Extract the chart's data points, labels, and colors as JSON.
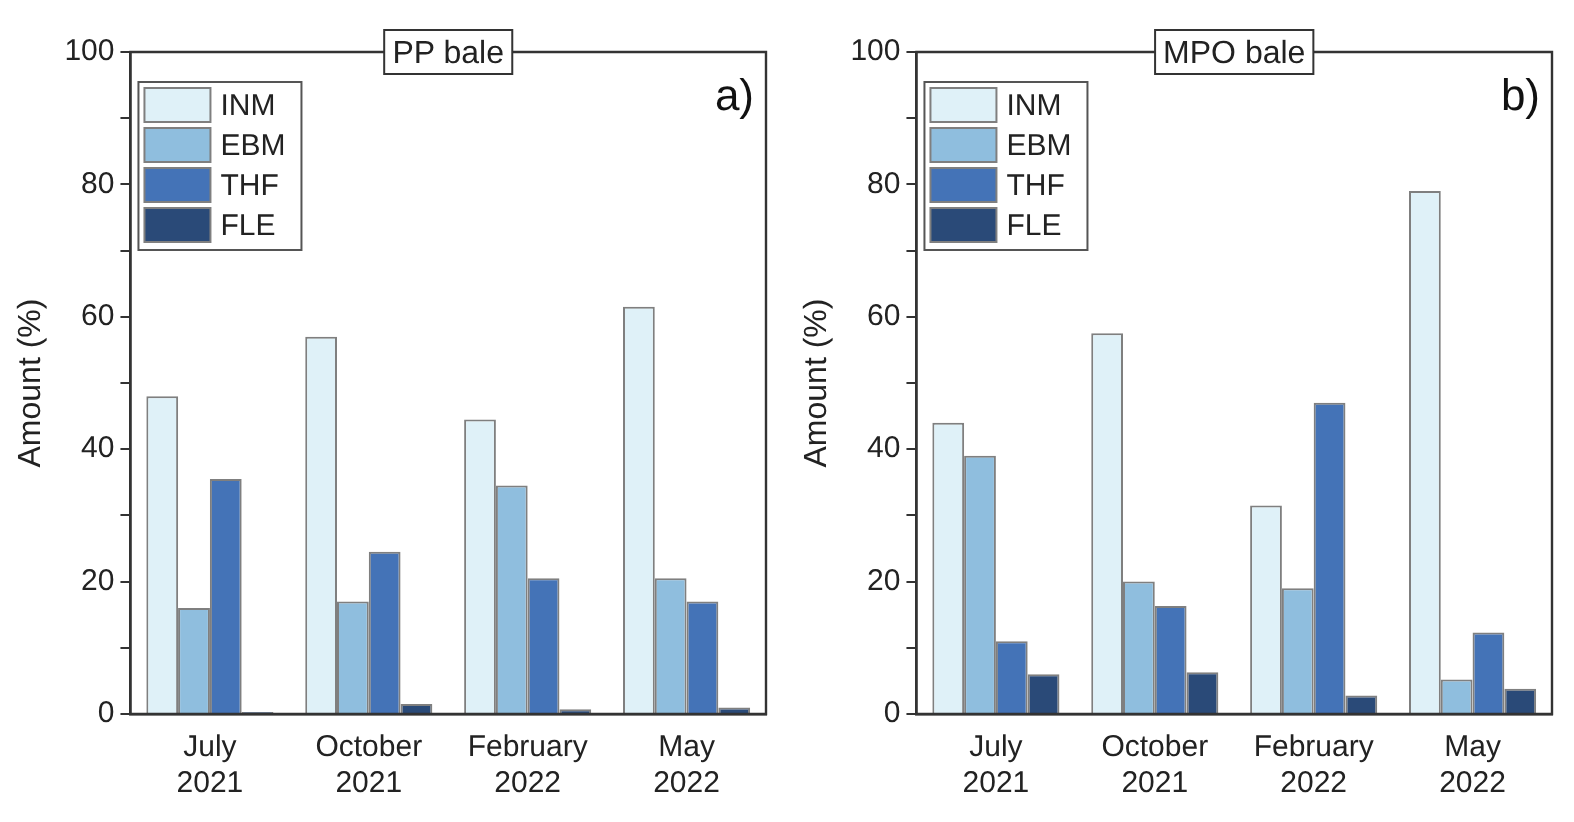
{
  "chart_data": [
    {
      "type": "bar",
      "title": "PP bale",
      "ylabel": "Amount (%)",
      "annotations": [
        "a)"
      ],
      "categories": [
        "July 2021",
        "October 2021",
        "February 2022",
        "May 2022"
      ],
      "series": [
        {
          "name": "INM",
          "color": "#dff1f8",
          "values": [
            48,
            57,
            44.5,
            61.5
          ]
        },
        {
          "name": "EBM",
          "color": "#8fbede",
          "values": [
            16,
            17,
            34.5,
            20.5
          ]
        },
        {
          "name": "THF",
          "color": "#4473b7",
          "values": [
            35.5,
            24.5,
            20.5,
            17
          ]
        },
        {
          "name": "FLE",
          "color": "#2a4a78",
          "values": [
            0.3,
            1.5,
            0.7,
            1
          ]
        }
      ],
      "ylim": [
        0,
        100
      ],
      "yticks": [
        0,
        {
          "value": 10,
          "label": null
        },
        20,
        {
          "value": 30,
          "label": null
        },
        40,
        {
          "value": 50,
          "label": null
        },
        60,
        {
          "value": 70,
          "label": null
        },
        80,
        {
          "value": 90,
          "label": null
        },
        100
      ],
      "grid": false,
      "legend": "top left"
    },
    {
      "type": "bar",
      "title": "MPO bale",
      "ylabel": "Amount (%)",
      "annotations": [
        "b)"
      ],
      "categories": [
        "July 2021",
        "October 2021",
        "February 2022",
        "May 2022"
      ],
      "series": [
        {
          "name": "INM",
          "color": "#dff1f8",
          "values": [
            44,
            57.5,
            31.5,
            79
          ]
        },
        {
          "name": "EBM",
          "color": "#8fbede",
          "values": [
            39,
            20,
            19,
            5.2
          ]
        },
        {
          "name": "THF",
          "color": "#4473b7",
          "values": [
            11,
            16.3,
            47,
            12.3
          ]
        },
        {
          "name": "FLE",
          "color": "#2a4a78",
          "values": [
            6,
            6.3,
            2.8,
            3.8
          ]
        }
      ],
      "ylim": [
        0,
        100
      ],
      "yticks": [
        0,
        {
          "value": 10,
          "label": null
        },
        20,
        {
          "value": 30,
          "label": null
        },
        40,
        {
          "value": 50,
          "label": null
        },
        60,
        {
          "value": 70,
          "label": null
        },
        80,
        {
          "value": 90,
          "label": null
        },
        100
      ],
      "grid": false,
      "legend": "top left"
    }
  ]
}
